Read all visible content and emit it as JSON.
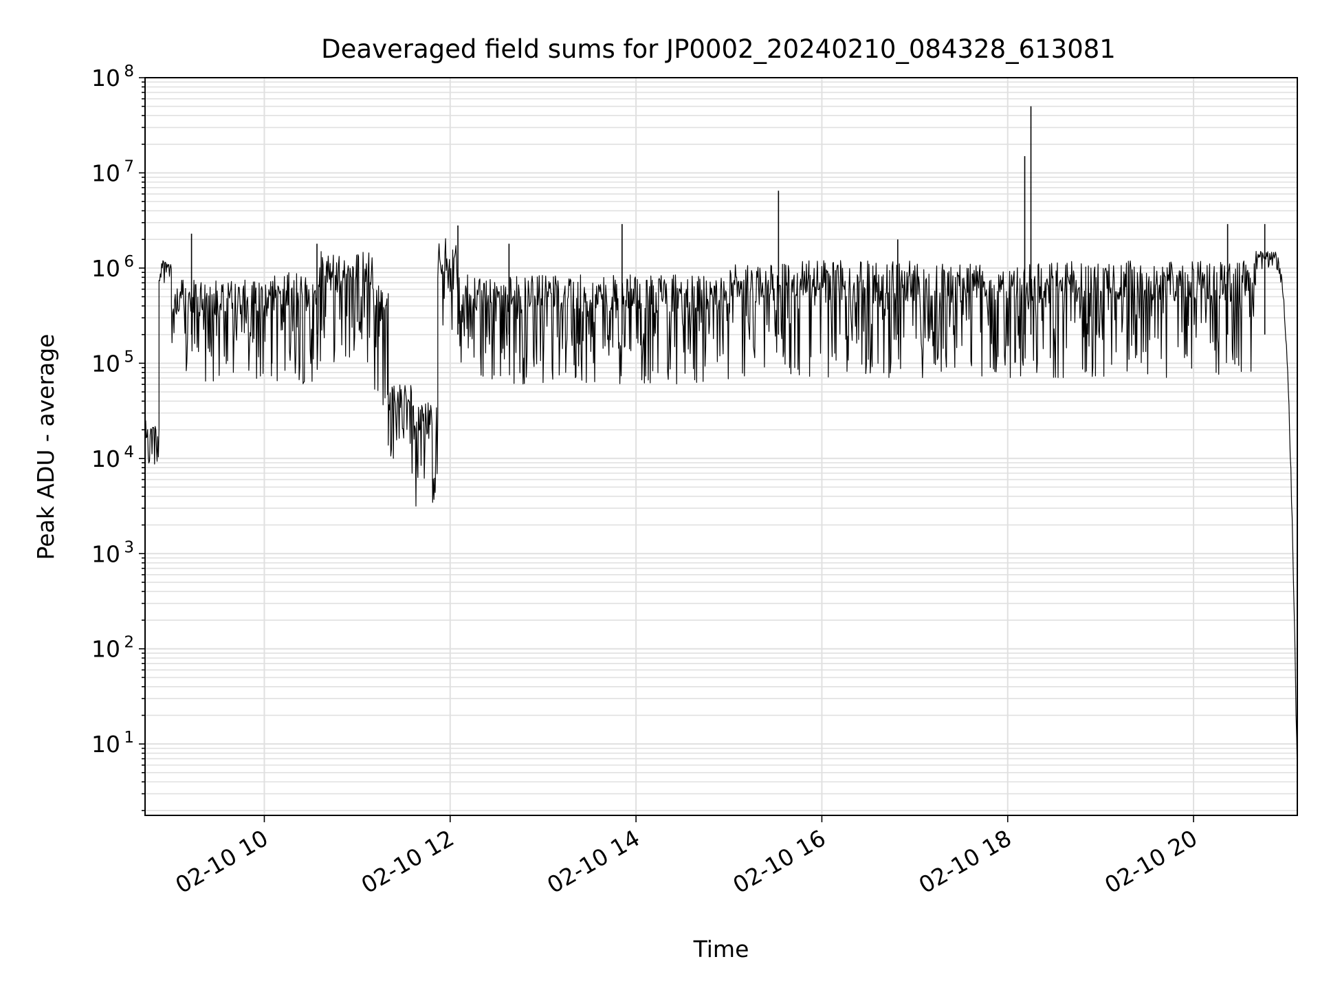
{
  "chart_data": {
    "type": "line",
    "title": "Deaveraged field sums for JP0002_20240210_084328_613081",
    "xlabel": "Time",
    "ylabel": "Peak ADU - average",
    "yscale": "log",
    "xlim": [
      "02-10 08:43",
      "02-10 21:07"
    ],
    "ylim_decades": [
      0.25,
      8
    ],
    "grid": "major and minor",
    "x_ticks": [
      {
        "t": "02-10 10:00",
        "label": "02-10 10"
      },
      {
        "t": "02-10 12:00",
        "label": "02-10 12"
      },
      {
        "t": "02-10 14:00",
        "label": "02-10 14"
      },
      {
        "t": "02-10 16:00",
        "label": "02-10 16"
      },
      {
        "t": "02-10 18:00",
        "label": "02-10 18"
      },
      {
        "t": "02-10 20:00",
        "label": "02-10 20"
      }
    ],
    "y_ticks": [
      {
        "exp": 1,
        "base": "10",
        "sup": "1"
      },
      {
        "exp": 2,
        "base": "10",
        "sup": "2"
      },
      {
        "exp": 3,
        "base": "10",
        "sup": "3"
      },
      {
        "exp": 4,
        "base": "10",
        "sup": "4"
      },
      {
        "exp": 5,
        "base": "10",
        "sup": "5"
      },
      {
        "exp": 6,
        "base": "10",
        "sup": "6"
      },
      {
        "exp": 7,
        "base": "10",
        "sup": "7"
      },
      {
        "exp": 8,
        "base": "10",
        "sup": "8"
      }
    ],
    "series_color": "#000000",
    "grid_color": "#e0e0e0",
    "series": [
      {
        "segments": [
          {
            "from": "02-10 08:43",
            "to": "02-10 08:52",
            "low": 7000,
            "high": 25000
          },
          {
            "from": "02-10 08:52",
            "to": "02-10 09:00",
            "low": 700000,
            "high": 1200000
          },
          {
            "from": "02-10 09:00",
            "to": "02-10 10:05",
            "low": 60000,
            "high": 750000
          },
          {
            "from": "02-10 10:05",
            "to": "02-10 10:35",
            "low": 60000,
            "high": 900000
          },
          {
            "from": "02-10 10:35",
            "to": "02-10 11:10",
            "low": 100000,
            "high": 1500000
          },
          {
            "from": "02-10 11:10",
            "to": "02-10 11:20",
            "low": 30000,
            "high": 800000
          },
          {
            "from": "02-10 11:20",
            "to": "02-10 11:35",
            "low": 10000,
            "high": 60000
          },
          {
            "from": "02-10 11:35",
            "to": "02-10 11:52",
            "low": 3000,
            "high": 40000
          },
          {
            "from": "02-10 11:52",
            "to": "02-10 12:05",
            "low": 200000,
            "high": 2100000
          },
          {
            "from": "02-10 12:05",
            "to": "02-10 15:00",
            "low": 60000,
            "high": 850000
          },
          {
            "from": "02-10 15:00",
            "to": "02-10 20:40",
            "low": 70000,
            "high": 1200000
          },
          {
            "from": "02-10 20:40",
            "to": "02-10 20:55",
            "low": 900000,
            "high": 1500000
          },
          {
            "from": "02-10 20:55",
            "to": "02-10 21:07",
            "low": 4,
            "high": 900000
          }
        ],
        "spikes": [
          {
            "t": "02-10 09:13",
            "value": 2300000
          },
          {
            "t": "02-10 10:34",
            "value": 1800000
          },
          {
            "t": "02-10 12:05",
            "value": 2800000
          },
          {
            "t": "02-10 12:38",
            "value": 1800000
          },
          {
            "t": "02-10 13:51",
            "value": 2900000
          },
          {
            "t": "02-10 15:32",
            "value": 6500000
          },
          {
            "t": "02-10 16:49",
            "value": 2000000
          },
          {
            "t": "02-10 18:11",
            "value": 15000000
          },
          {
            "t": "02-10 18:15",
            "value": 50000000
          },
          {
            "t": "02-10 20:22",
            "value": 2900000
          },
          {
            "t": "02-10 20:46",
            "value": 2900000
          }
        ]
      }
    ]
  }
}
